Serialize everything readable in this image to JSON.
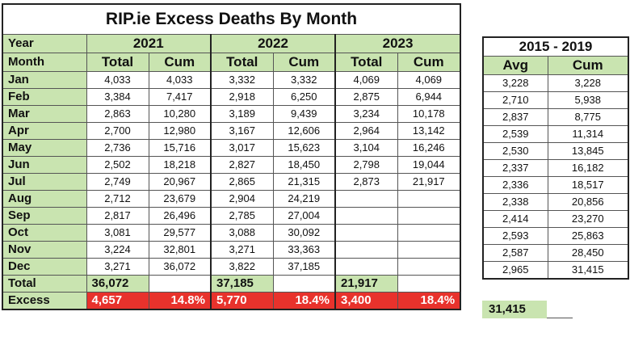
{
  "title": "RIP.ie Excess Deaths By Month",
  "labels": {
    "year": "Year",
    "month": "Month",
    "total": "Total",
    "excess": "Excess"
  },
  "years": [
    "2021",
    "2022",
    "2023"
  ],
  "subheaders": {
    "total": "Total",
    "cum": "Cum"
  },
  "rows": [
    {
      "month": "Jan",
      "v": [
        "4,033",
        "4,033",
        "3,332",
        "3,332",
        "4,069",
        "4,069"
      ]
    },
    {
      "month": "Feb",
      "v": [
        "3,384",
        "7,417",
        "2,918",
        "6,250",
        "2,875",
        "6,944"
      ]
    },
    {
      "month": "Mar",
      "v": [
        "2,863",
        "10,280",
        "3,189",
        "9,439",
        "3,234",
        "10,178"
      ]
    },
    {
      "month": "Apr",
      "v": [
        "2,700",
        "12,980",
        "3,167",
        "12,606",
        "2,964",
        "13,142"
      ]
    },
    {
      "month": "May",
      "v": [
        "2,736",
        "15,716",
        "3,017",
        "15,623",
        "3,104",
        "16,246"
      ]
    },
    {
      "month": "Jun",
      "v": [
        "2,502",
        "18,218",
        "2,827",
        "18,450",
        "2,798",
        "19,044"
      ]
    },
    {
      "month": "Jul",
      "v": [
        "2,749",
        "20,967",
        "2,865",
        "21,315",
        "2,873",
        "21,917"
      ]
    },
    {
      "month": "Aug",
      "v": [
        "2,712",
        "23,679",
        "2,904",
        "24,219",
        "",
        ""
      ]
    },
    {
      "month": "Sep",
      "v": [
        "2,817",
        "26,496",
        "2,785",
        "27,004",
        "",
        ""
      ]
    },
    {
      "month": "Oct",
      "v": [
        "3,081",
        "29,577",
        "3,088",
        "30,092",
        "",
        ""
      ]
    },
    {
      "month": "Nov",
      "v": [
        "3,224",
        "32,801",
        "3,271",
        "33,363",
        "",
        ""
      ]
    },
    {
      "month": "Dec",
      "v": [
        "3,271",
        "36,072",
        "3,822",
        "37,185",
        "",
        ""
      ]
    }
  ],
  "totals": [
    "36,072",
    "37,185",
    "21,917"
  ],
  "excess": [
    {
      "value": "4,657",
      "pct": "14.8%"
    },
    {
      "value": "5,770",
      "pct": "18.4%"
    },
    {
      "value": "3,400",
      "pct": "18.4%"
    }
  ],
  "baseline": {
    "period": "2015 - 2019",
    "avg_label": "Avg",
    "cum_label": "Cum",
    "rows": [
      [
        "3,228",
        "3,228"
      ],
      [
        "2,710",
        "5,938"
      ],
      [
        "2,837",
        "8,775"
      ],
      [
        "2,539",
        "11,314"
      ],
      [
        "2,530",
        "13,845"
      ],
      [
        "2,337",
        "16,182"
      ],
      [
        "2,336",
        "18,517"
      ],
      [
        "2,338",
        "20,856"
      ],
      [
        "2,414",
        "23,270"
      ],
      [
        "2,593",
        "25,863"
      ],
      [
        "2,587",
        "28,450"
      ],
      [
        "2,965",
        "31,415"
      ]
    ],
    "total": "31,415"
  },
  "colors": {
    "header_green": "#c9e4b0",
    "excess_red": "#e8322c"
  }
}
